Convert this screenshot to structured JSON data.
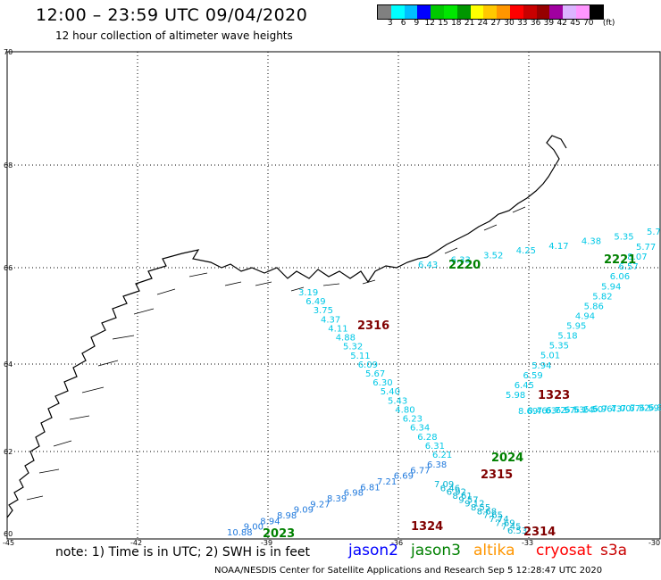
{
  "header": {
    "title": "12:00 – 23:59 UTC 09/04/2020",
    "subtitle": "12 hour collection of altimeter wave heights"
  },
  "colorbar": {
    "labels": [
      "3",
      "6",
      "9",
      "12",
      "15",
      "18",
      "21",
      "24",
      "27",
      "30",
      "33",
      "36",
      "39",
      "42",
      "45",
      "70",
      "(ft)"
    ],
    "colors": [
      "#808080",
      "#00ffff",
      "#00bfff",
      "#0000ff",
      "#00c800",
      "#00e600",
      "#009600",
      "#ffff00",
      "#ffc800",
      "#ff9600",
      "#ff0000",
      "#c80000",
      "#960000",
      "#a000a0",
      "#dcb4ff",
      "#ff96ff",
      "#000000"
    ]
  },
  "axes": {
    "lat_labels": [
      "70",
      "68",
      "66",
      "64",
      "62",
      "60"
    ],
    "lon_labels": [
      "-45",
      "-42",
      "-39",
      "-36",
      "-33",
      "-30"
    ]
  },
  "passes": [
    {
      "label": "2316",
      "color": "#800000"
    },
    {
      "label": "2220",
      "color": "#008000"
    },
    {
      "label": "2221",
      "color": "#008000"
    },
    {
      "label": "1323",
      "color": "#800000"
    },
    {
      "label": "2024",
      "color": "#008000"
    },
    {
      "label": "2315",
      "color": "#800000"
    },
    {
      "label": "1324",
      "color": "#800000"
    },
    {
      "label": "2314",
      "color": "#800000"
    },
    {
      "label": "2023",
      "color": "#008000"
    }
  ],
  "track_2316": [
    "3.19",
    "6.49",
    "3.75",
    "4.37",
    "4.11",
    "4.88",
    "5.32",
    "5.11",
    "6.09",
    "5.67",
    "6.30",
    "5.40",
    "5.43",
    "4.80",
    "6.23",
    "6.34",
    "6.28",
    "6.31",
    "6.21"
  ],
  "track_top": [
    "6.43",
    "6.33",
    "3.52",
    "4.25",
    "4.17",
    "4.38",
    "5.35",
    "5.7"
  ],
  "track_2221": [
    "5.77",
    "8.07",
    "6.57",
    "6.06",
    "5.94",
    "5.82",
    "5.86",
    "4.94",
    "5.95",
    "5.18",
    "5.35",
    "5.01",
    "5.94",
    "6.59",
    "6.45",
    "5.98"
  ],
  "track_1323": [
    "8.69",
    "8.46",
    "7.63",
    "6.72",
    "6.57",
    "6.53",
    "6.24",
    "6.50",
    "6.96",
    "7.43",
    "7.00",
    "7.67",
    "7.32",
    "6.59",
    "6.9"
  ],
  "track_2315": [
    "6.38",
    "6.77",
    "6.69",
    "7.21",
    "6.81",
    "6.98",
    "8.39",
    "9.27",
    "9.09",
    "8.98",
    "8.94",
    "9.00",
    "10.88"
  ],
  "track_1324": [
    "7.09",
    "6.46",
    "6.92",
    "8.61",
    "9.57",
    "9.12",
    "8.55",
    "8.68",
    "7.65",
    "7.74",
    "7.69",
    "7.45",
    "6.53"
  ],
  "footer": {
    "note": "note:  1) Time is in UTC;  2) SWH is in feet",
    "satellites": [
      {
        "name": "jason2",
        "color": "#0000ff"
      },
      {
        "name": "jason3",
        "color": "#008000"
      },
      {
        "name": "altika",
        "color": "#ff9600"
      },
      {
        "name": "cryosat",
        "color": "#ff0000"
      },
      {
        "name": "s3a",
        "color": "#c80000"
      }
    ],
    "credit": "NOAA/NESDIS Center for Satellite Applications and Research    Sep  5 12:28:47 UTC 2020"
  }
}
